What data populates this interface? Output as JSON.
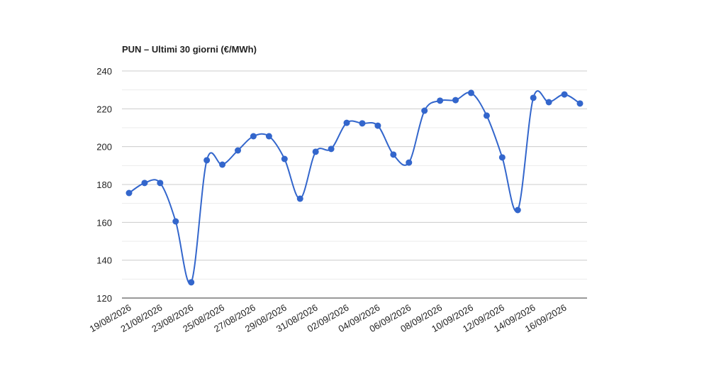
{
  "chart_data": {
    "type": "line",
    "title": "PUN – Ultimi 30 giorni (€/MWh)",
    "categories": [
      "19/08/2026",
      null,
      "21/08/2026",
      null,
      "23/08/2026",
      null,
      "25/08/2026",
      null,
      "27/08/2026",
      null,
      "29/08/2026",
      null,
      "31/08/2026",
      null,
      "02/09/2026",
      null,
      "04/09/2026",
      null,
      "06/09/2026",
      null,
      "08/09/2026",
      null,
      "10/09/2026",
      null,
      "12/09/2026",
      null,
      "14/09/2026",
      null,
      "16/09/2026",
      null
    ],
    "series": [
      {
        "color": "#3366cc",
        "values": [
          175.5,
          180.8,
          180.8,
          160.5,
          128.3,
          192.8,
          190.5,
          198,
          205.5,
          205.5,
          193.5,
          172.5,
          197.3,
          198.8,
          212.6,
          212.3,
          211.1,
          195.8,
          191.6,
          219,
          224.3,
          224.6,
          228.4,
          216.4,
          194.3,
          166.5,
          225.8,
          223.5,
          227.6,
          222.8
        ]
      }
    ],
    "ylim": [
      120,
      240
    ],
    "yticks": [
      120,
      140,
      160,
      180,
      200,
      220,
      240
    ],
    "grid": true
  }
}
